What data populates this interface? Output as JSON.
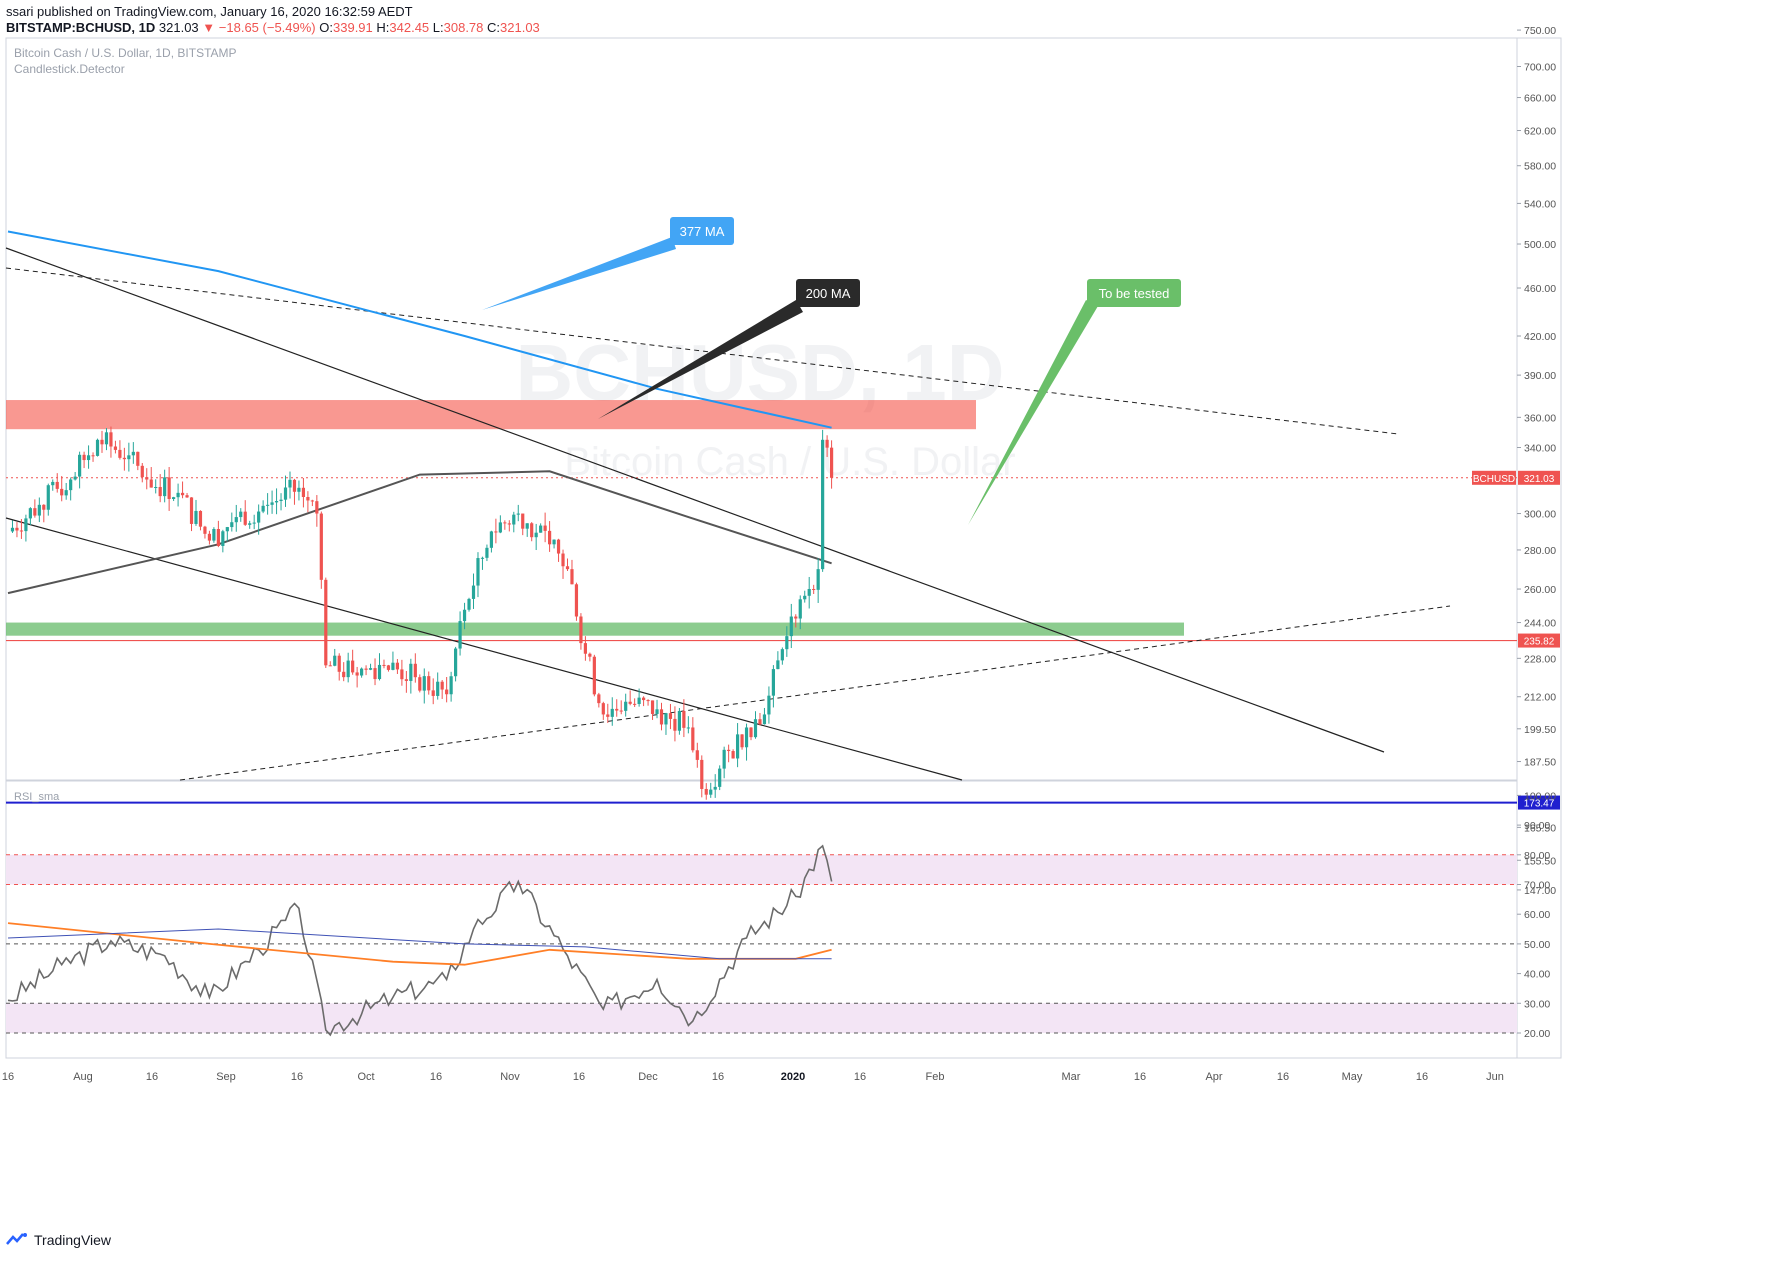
{
  "header": {
    "line1": "ssari published on TradingView.com, January 16, 2020 16:32:59 AEDT",
    "symbol": "BITSTAMP:BCHUSD, 1D",
    "last": "321.03",
    "arrow": "▼",
    "change": "−18.65 (−5.49%)",
    "o_label": "O:",
    "o": "339.91",
    "h_label": "H:",
    "h": "342.45",
    "l_label": "L:",
    "l": "308.78",
    "c_label": "C:",
    "c": "321.03"
  },
  "footer": {
    "brand": "TradingView"
  },
  "chart_data": {
    "type": "candlestick",
    "title": "Bitcoin Cash / U.S. Dollar, 1D, BITSTAMP",
    "subtitle": "Candlestick.Detector",
    "watermark_symbol": "BCHUSD, 1D",
    "watermark_name": "Bitcoin Cash / U.S. Dollar",
    "y_scale": "log",
    "y_ticks": [
      750,
      700,
      660,
      620,
      580,
      540,
      500,
      460,
      420,
      390,
      360,
      340,
      300,
      280,
      260,
      244,
      228,
      212,
      199.5,
      187.5,
      165.5,
      155.5,
      147
    ],
    "y_tick_labels": [
      "750.00",
      "700.00",
      "660.00",
      "620.00",
      "580.00",
      "540.00",
      "500.00",
      "460.00",
      "420.00",
      "390.00",
      "360.00",
      "340.00",
      "300.00",
      "280.00",
      "260.00",
      "244.00",
      "228.00",
      "212.00",
      "199.50",
      "187.50",
      "165.50",
      "155.50",
      "147.00"
    ],
    "x_ticks": [
      "16",
      "Aug",
      "16",
      "Sep",
      "16",
      "Oct",
      "16",
      "Nov",
      "16",
      "Dec",
      "16",
      "2020",
      "16",
      "Feb",
      "Mar",
      "16",
      "Apr",
      "16",
      "May",
      "16",
      "Jun"
    ],
    "x_tick_bold": [
      "2020"
    ],
    "price_labels": [
      {
        "text": "BCHUSD",
        "value": 321.03,
        "color": "#ef5350"
      },
      {
        "text": "321.03",
        "value": 321.03,
        "color": "#ef5350"
      },
      {
        "text": "235.82",
        "value": 235.82,
        "color": "#ef5350"
      },
      {
        "text": "173.47",
        "value": 173.47,
        "color": "#1f1fcf"
      }
    ],
    "zones": [
      {
        "name": "resistance",
        "from": 352,
        "to": 372,
        "color": "#f44336"
      },
      {
        "name": "support",
        "from": 238,
        "to": 244,
        "color": "#66bb6a"
      }
    ],
    "hlines": [
      {
        "value": 235.82,
        "color": "#ef5350"
      },
      {
        "value": 173.47,
        "color": "#1f1fcf"
      },
      {
        "value": 321.03,
        "color": "#ef5350",
        "style": "dotted"
      }
    ],
    "callouts": [
      {
        "text": "377 MA",
        "color": "#42a5f5",
        "text_color": "#ffffff"
      },
      {
        "text": "200 MA",
        "color": "#2a2a2a",
        "text_color": "#ffffff"
      },
      {
        "text": "To be tested",
        "color": "#6abf69",
        "text_color": "#ffffff"
      }
    ],
    "candles_daily_close_approx": [
      {
        "date": "2019-07-16",
        "close": 290
      },
      {
        "date": "2019-07-23",
        "close": 305
      },
      {
        "date": "2019-07-30",
        "close": 320
      },
      {
        "date": "2019-08-05",
        "close": 345
      },
      {
        "date": "2019-08-12",
        "close": 335
      },
      {
        "date": "2019-08-16",
        "close": 320
      },
      {
        "date": "2019-08-23",
        "close": 312
      },
      {
        "date": "2019-08-30",
        "close": 285
      },
      {
        "date": "2019-09-05",
        "close": 298
      },
      {
        "date": "2019-09-12",
        "close": 305
      },
      {
        "date": "2019-09-19",
        "close": 315
      },
      {
        "date": "2019-09-23",
        "close": 300
      },
      {
        "date": "2019-09-25",
        "close": 225
      },
      {
        "date": "2019-10-01",
        "close": 222
      },
      {
        "date": "2019-10-08",
        "close": 225
      },
      {
        "date": "2019-10-15",
        "close": 220
      },
      {
        "date": "2019-10-22",
        "close": 213
      },
      {
        "date": "2019-10-26",
        "close": 250
      },
      {
        "date": "2019-11-01",
        "close": 290
      },
      {
        "date": "2019-11-07",
        "close": 300
      },
      {
        "date": "2019-11-14",
        "close": 283
      },
      {
        "date": "2019-11-18",
        "close": 270
      },
      {
        "date": "2019-11-22",
        "close": 230
      },
      {
        "date": "2019-11-26",
        "close": 205
      },
      {
        "date": "2019-12-01",
        "close": 210
      },
      {
        "date": "2019-12-08",
        "close": 207
      },
      {
        "date": "2019-12-15",
        "close": 200
      },
      {
        "date": "2019-12-18",
        "close": 178
      },
      {
        "date": "2019-12-22",
        "close": 185
      },
      {
        "date": "2019-12-28",
        "close": 200
      },
      {
        "date": "2020-01-01",
        "close": 205
      },
      {
        "date": "2020-01-05",
        "close": 232
      },
      {
        "date": "2020-01-09",
        "close": 255
      },
      {
        "date": "2020-01-13",
        "close": 270
      },
      {
        "date": "2020-01-14",
        "close": 345
      },
      {
        "date": "2020-01-15",
        "close": 339.91
      },
      {
        "date": "2020-01-16",
        "close": 321.03
      }
    ],
    "ma_377_approx": [
      {
        "date": "2019-07-16",
        "value": 512
      },
      {
        "date": "2019-09-01",
        "value": 475
      },
      {
        "date": "2019-10-26",
        "value": 420
      },
      {
        "date": "2019-12-08",
        "value": 380
      },
      {
        "date": "2020-01-16",
        "value": 353
      }
    ],
    "ma_200_approx": [
      {
        "date": "2019-07-16",
        "value": 258
      },
      {
        "date": "2019-09-01",
        "value": 283
      },
      {
        "date": "2019-10-16",
        "value": 323
      },
      {
        "date": "2019-11-14",
        "value": 325
      },
      {
        "date": "2019-12-15",
        "value": 298
      },
      {
        "date": "2020-01-16",
        "value": 273
      }
    ],
    "rsi": {
      "label": "RSI_sma",
      "y_ticks": [
        100,
        90,
        80,
        70,
        60,
        50,
        40,
        30,
        20
      ],
      "y_tick_labels": [
        "100.00",
        "90.00",
        "80.00",
        "70.00",
        "60.00",
        "50.00",
        "40.00",
        "30.00",
        "20.00"
      ],
      "overbought_band": [
        70,
        80
      ],
      "oversold_band": [
        20,
        30
      ],
      "midline": 50,
      "series_approx": [
        {
          "date": "2019-07-16",
          "value": 31
        },
        {
          "date": "2019-07-28",
          "value": 43
        },
        {
          "date": "2019-08-08",
          "value": 51
        },
        {
          "date": "2019-08-20",
          "value": 46
        },
        {
          "date": "2019-08-30",
          "value": 32
        },
        {
          "date": "2019-09-10",
          "value": 48
        },
        {
          "date": "2019-09-19",
          "value": 62
        },
        {
          "date": "2019-09-25",
          "value": 21
        },
        {
          "date": "2019-10-10",
          "value": 32
        },
        {
          "date": "2019-10-22",
          "value": 38
        },
        {
          "date": "2019-10-28",
          "value": 55
        },
        {
          "date": "2019-11-07",
          "value": 71
        },
        {
          "date": "2019-11-18",
          "value": 46
        },
        {
          "date": "2019-11-26",
          "value": 28
        },
        {
          "date": "2019-12-08",
          "value": 38
        },
        {
          "date": "2019-12-16",
          "value": 24
        },
        {
          "date": "2019-12-28",
          "value": 52
        },
        {
          "date": "2020-01-08",
          "value": 66
        },
        {
          "date": "2020-01-14",
          "value": 83
        },
        {
          "date": "2020-01-16",
          "value": 71
        }
      ]
    }
  }
}
